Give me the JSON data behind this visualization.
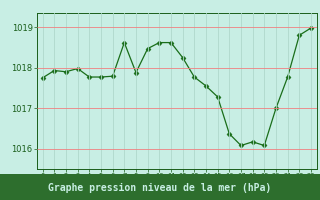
{
  "x": [
    0,
    1,
    2,
    3,
    4,
    5,
    6,
    7,
    8,
    9,
    10,
    11,
    12,
    13,
    14,
    15,
    16,
    17,
    18,
    19,
    20,
    21,
    22,
    23
  ],
  "y": [
    1017.75,
    1017.93,
    1017.9,
    1017.98,
    1017.77,
    1017.77,
    1017.79,
    1018.62,
    1017.88,
    1018.47,
    1018.62,
    1018.62,
    1018.25,
    1017.77,
    1017.55,
    1017.28,
    1016.37,
    1016.08,
    1016.17,
    1016.08,
    1017.0,
    1017.77,
    1018.8,
    1018.98
  ],
  "line_color": "#1a6e1a",
  "marker": "D",
  "marker_size": 2.5,
  "bg_color": "#c8eee4",
  "plot_bg_color": "#c8eee4",
  "footer_bg_color": "#2d6e2d",
  "grid_color": "#f08080",
  "xlabel": "Graphe pression niveau de la mer (hPa)",
  "xlabel_fontsize": 7,
  "xlabel_bold": true,
  "xlabel_color": "#c8eee4",
  "tick_color": "#1a5e1a",
  "ytick_color": "#1a5e1a",
  "ylim": [
    1015.5,
    1019.35
  ],
  "yticks": [
    1016,
    1017,
    1018,
    1019
  ],
  "xlim": [
    -0.5,
    23.5
  ],
  "xticks": [
    0,
    1,
    2,
    3,
    4,
    5,
    6,
    7,
    8,
    9,
    10,
    11,
    12,
    13,
    14,
    15,
    16,
    17,
    18,
    19,
    20,
    21,
    22,
    23
  ],
  "xtick_fontsize": 5.0,
  "ytick_fontsize": 6.0,
  "hgrid_color": "#f08080",
  "vgrid_color": "#b0d8cc"
}
